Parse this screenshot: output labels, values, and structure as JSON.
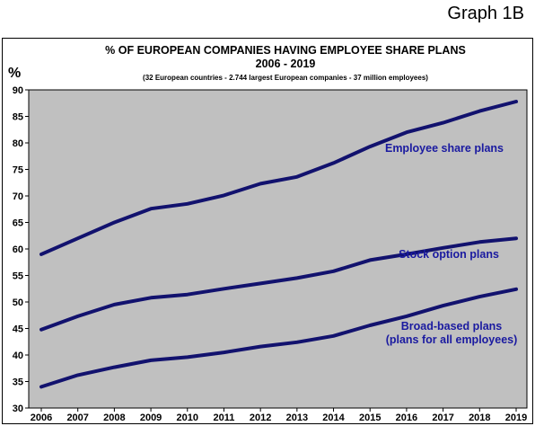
{
  "graph_label": "Graph 1B",
  "chart_data": {
    "type": "line",
    "title": "% OF EUROPEAN COMPANIES HAVING EMPLOYEE SHARE PLANS",
    "title_years": "2006 - 2019",
    "subtitle": "(32 European countries - 2.744 largest European companies - 37 million employees)",
    "ylabel": "%",
    "xlabel": "",
    "ylim": [
      30,
      90
    ],
    "yticks": [
      30,
      35,
      40,
      45,
      50,
      55,
      60,
      65,
      70,
      75,
      80,
      85,
      90
    ],
    "x": [
      "2006",
      "2007",
      "2008",
      "2009",
      "2010",
      "2011",
      "2012",
      "2013",
      "2014",
      "2015",
      "2016",
      "2017",
      "2018",
      "2019"
    ],
    "grid": false,
    "colors": {
      "plot_bg": "#c0c0c0",
      "line": "#12126e",
      "label": "#1a1aa0"
    },
    "series": [
      {
        "label_lines": [
          "Employee share plans"
        ],
        "values": [
          59.0,
          62.0,
          65.0,
          67.6,
          68.5,
          70.1,
          72.3,
          73.6,
          76.2,
          79.3,
          82.0,
          83.8,
          86.0,
          87.8
        ]
      },
      {
        "label_lines": [
          "Stock option plans"
        ],
        "values": [
          44.8,
          47.3,
          49.5,
          50.8,
          51.4,
          52.5,
          53.5,
          54.5,
          55.8,
          57.9,
          59.0,
          60.2,
          61.3,
          62.0
        ]
      },
      {
        "label_lines": [
          "Broad-based plans",
          "(plans for all employees)"
        ],
        "values": [
          34.0,
          36.2,
          37.7,
          39.0,
          39.6,
          40.5,
          41.6,
          42.4,
          43.6,
          45.6,
          47.3,
          49.3,
          51.0,
          52.4
        ]
      }
    ]
  }
}
